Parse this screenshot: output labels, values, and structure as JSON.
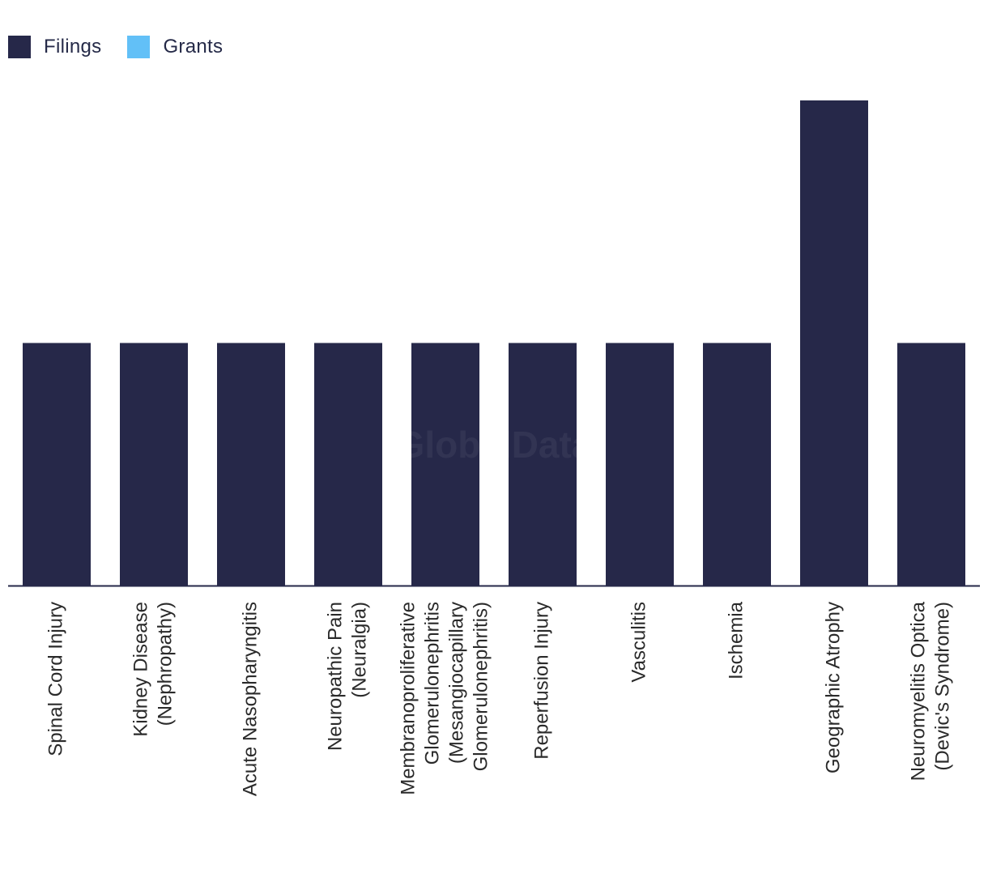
{
  "legend": {
    "filings_label": "Filings",
    "grants_label": "Grants"
  },
  "colors": {
    "filings": "#262849",
    "grants": "#62c0f7",
    "axis": "#262849",
    "watermark": "#f2f2f5"
  },
  "watermark": "GlobalData",
  "chart_data": {
    "type": "bar",
    "title": "",
    "xlabel": "",
    "ylabel": "",
    "ylim": [
      0,
      2
    ],
    "grid": false,
    "legend_position": "top-left",
    "categories": [
      [
        "Spinal Cord Injury"
      ],
      [
        "Kidney Disease",
        "(Nephropathy)"
      ],
      [
        "Acute Nasopharyngitis"
      ],
      [
        "Neuropathic Pain",
        "(Neuralgia)"
      ],
      [
        "Membranoproliferative",
        "Glomerulonephritis",
        "(Mesangiocapillary",
        "Glomerulonephritis)"
      ],
      [
        "Reperfusion Injury"
      ],
      [
        "Vasculitis"
      ],
      [
        "Ischemia"
      ],
      [
        "Geographic Atrophy"
      ],
      [
        "Neuromyelitis Optica",
        "(Devic's Syndrome)"
      ]
    ],
    "series": [
      {
        "name": "Filings",
        "values": [
          1,
          1,
          1,
          1,
          1,
          1,
          1,
          1,
          2,
          1
        ]
      },
      {
        "name": "Grants",
        "values": [
          0,
          0,
          0,
          0,
          0,
          0,
          0,
          0,
          0,
          0
        ]
      }
    ]
  }
}
